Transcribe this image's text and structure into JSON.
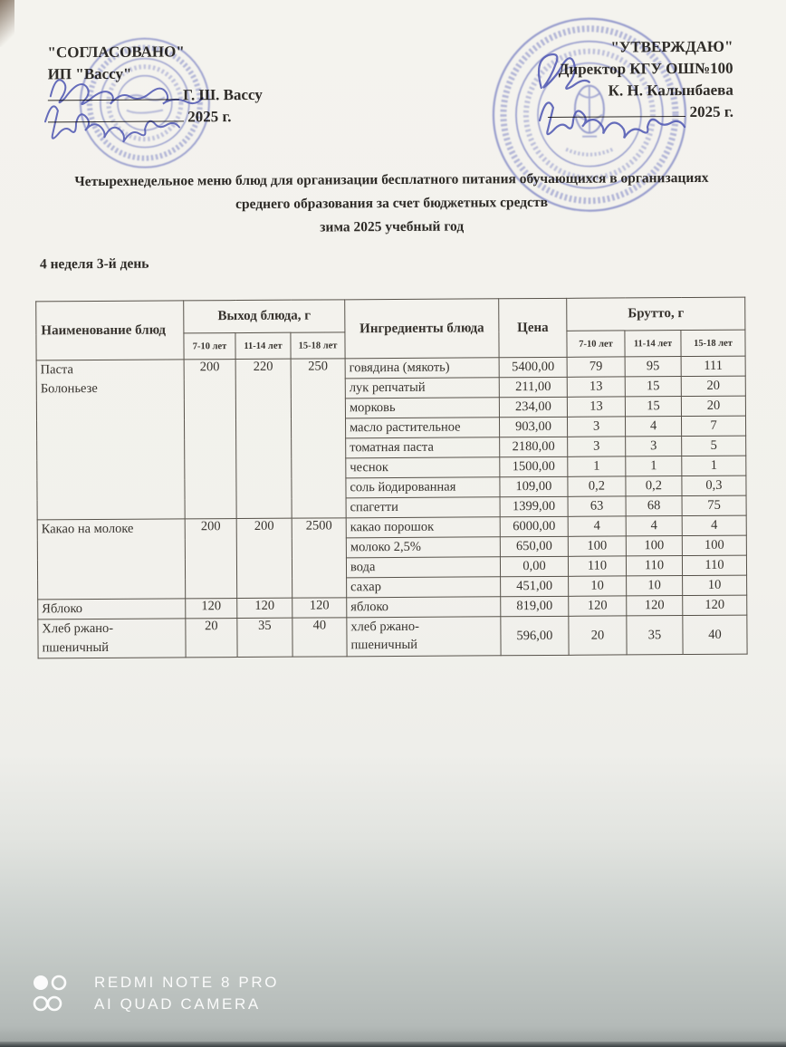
{
  "approval_left": {
    "title": "\"СОГЛАСОВАНО\"",
    "org": "ИП \"Вассу\"",
    "signee": "Г. Ш. Вассу",
    "year": "2025 г."
  },
  "approval_right": {
    "title": "\"УТВЕРЖДАЮ\"",
    "role": "Директор КГУ ОШ№100",
    "signee": "К. Н. Калынбаева",
    "year": "2025 г."
  },
  "title_lines": [
    "Четырехнедельное меню блюд для организации бесплатного питания обучающихся в организациях",
    "среднего образования за счет бюджетных средств",
    "зима 2025 учебный год"
  ],
  "day_heading": "4 неделя 3-й день",
  "menu_table": {
    "col_dish": "Наименование блюд",
    "col_output": "Выход блюда, г",
    "col_ingredients": "Ингредиенты блюда",
    "col_price": "Цена",
    "col_brutto": "Брутто, г",
    "age_groups": [
      "7-10 лет",
      "11-14 лет",
      "15-18 лет"
    ],
    "dishes": [
      {
        "name": "Паста\nБолоньезе",
        "output": [
          "200",
          "220",
          "250"
        ],
        "rows": [
          {
            "ingredient": "говядина (мякоть)",
            "price": "5400,00",
            "brutto": [
              "79",
              "95",
              "111"
            ]
          },
          {
            "ingredient": "лук репчатый",
            "price": "211,00",
            "brutto": [
              "13",
              "15",
              "20"
            ]
          },
          {
            "ingredient": "морковь",
            "price": "234,00",
            "brutto": [
              "13",
              "15",
              "20"
            ]
          },
          {
            "ingredient": "масло растительное",
            "price": "903,00",
            "brutto": [
              "3",
              "4",
              "7"
            ]
          },
          {
            "ingredient": "томатная паста",
            "price": "2180,00",
            "brutto": [
              "3",
              "3",
              "5"
            ]
          },
          {
            "ingredient": "чеснок",
            "price": "1500,00",
            "brutto": [
              "1",
              "1",
              "1"
            ]
          },
          {
            "ingredient": "соль йодированная",
            "price": "109,00",
            "brutto": [
              "0,2",
              "0,2",
              "0,3"
            ]
          },
          {
            "ingredient": "спагетти",
            "price": "1399,00",
            "brutto": [
              "63",
              "68",
              "75"
            ]
          }
        ]
      },
      {
        "name": "Какао на молоке",
        "output": [
          "200",
          "200",
          "2500"
        ],
        "rows": [
          {
            "ingredient": "какао порошок",
            "price": "6000,00",
            "brutto": [
              "4",
              "4",
              "4"
            ]
          },
          {
            "ingredient": "молоко 2,5%",
            "price": "650,00",
            "brutto": [
              "100",
              "100",
              "100"
            ]
          },
          {
            "ingredient": "вода",
            "price": "0,00",
            "brutto": [
              "110",
              "110",
              "110"
            ]
          },
          {
            "ingredient": "сахар",
            "price": "451,00",
            "brutto": [
              "10",
              "10",
              "10"
            ]
          }
        ]
      },
      {
        "name": "Яблоко",
        "output": [
          "120",
          "120",
          "120"
        ],
        "rows": [
          {
            "ingredient": "яблоко",
            "price": "819,00",
            "brutto": [
              "120",
              "120",
              "120"
            ]
          }
        ]
      },
      {
        "name": "Хлеб ржано-\nпшеничный",
        "output": [
          "20",
          "35",
          "40"
        ],
        "rows": [
          {
            "ingredient": "хлеб ржано-\nпшеничный",
            "price": "596,00",
            "brutto": [
              "20",
              "35",
              "40"
            ]
          }
        ]
      }
    ]
  },
  "camera_watermark": {
    "line1": "REDMI NOTE 8 PRO",
    "line2": "AI QUAD CAMERA"
  },
  "colors": {
    "paper": "#f2f1ec",
    "stamp_blue": "#5a63b8",
    "ink_blue": "#4049ae",
    "table_ink": "#37332e",
    "surface_gray": "#bfc5c2"
  }
}
